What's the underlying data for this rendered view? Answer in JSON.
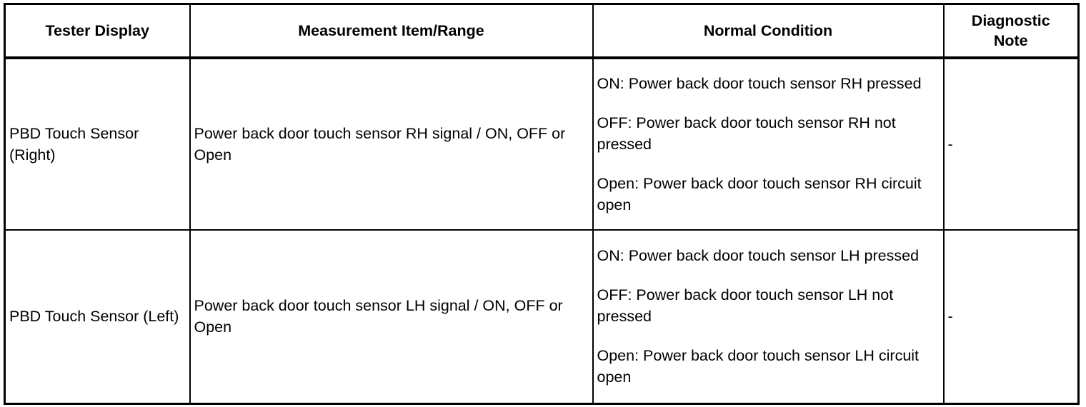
{
  "headers": [
    "Tester Display",
    "Measurement Item/Range",
    "Normal Condition",
    "Diagnostic\nNote"
  ],
  "rows": [
    {
      "tester_display": "PBD Touch Sensor (Right)",
      "measurement": "Power back door touch sensor RH signal / ON, OFF or Open",
      "conditions": [
        "ON: Power back door touch sensor RH pressed",
        "OFF: Power back door touch sensor RH not pressed",
        "Open: Power back door touch sensor RH circuit open"
      ],
      "note": "-"
    },
    {
      "tester_display": "PBD Touch Sensor (Left)",
      "measurement": "Power back door touch sensor LH signal / ON, OFF or Open",
      "conditions": [
        "ON: Power back door touch sensor LH pressed",
        "OFF: Power back door touch sensor LH not pressed",
        "Open: Power back door touch sensor LH circuit open"
      ],
      "note": "-"
    }
  ]
}
